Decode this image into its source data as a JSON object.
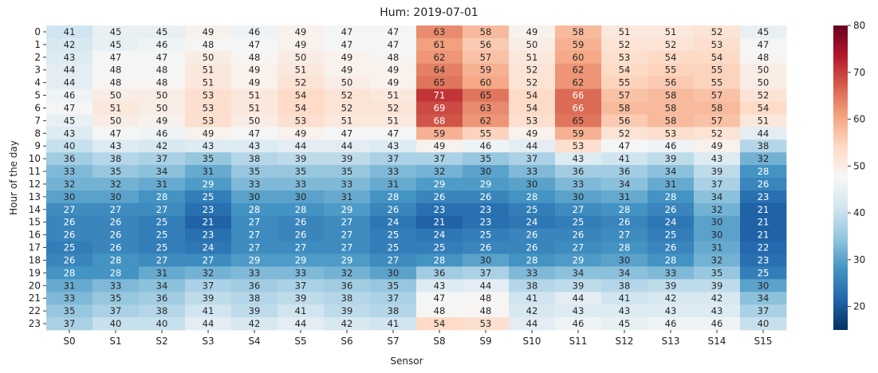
{
  "chart_data": {
    "type": "heatmap",
    "title": "Hum: 2019-07-01",
    "xlabel": "Sensor",
    "ylabel": "Hour of the day",
    "x": [
      "S0",
      "S1",
      "S2",
      "S3",
      "S4",
      "S5",
      "S6",
      "S7",
      "S8",
      "S9",
      "S10",
      "S11",
      "S12",
      "S13",
      "S14",
      "S15"
    ],
    "y": [
      "0",
      "1",
      "2",
      "3",
      "4",
      "5",
      "6",
      "7",
      "8",
      "9",
      "10",
      "11",
      "12",
      "13",
      "14",
      "15",
      "16",
      "17",
      "18",
      "19",
      "20",
      "21",
      "22",
      "23"
    ],
    "values": [
      [
        41,
        45,
        45,
        49,
        46,
        49,
        47,
        47,
        63,
        58,
        49,
        58,
        51,
        51,
        52,
        45
      ],
      [
        42,
        45,
        46,
        48,
        47,
        49,
        47,
        47,
        61,
        56,
        50,
        59,
        52,
        52,
        53,
        47
      ],
      [
        43,
        47,
        47,
        50,
        48,
        50,
        49,
        48,
        62,
        57,
        51,
        60,
        53,
        54,
        54,
        48
      ],
      [
        44,
        48,
        48,
        51,
        49,
        51,
        49,
        49,
        64,
        59,
        52,
        62,
        54,
        55,
        55,
        50
      ],
      [
        44,
        48,
        48,
        51,
        49,
        52,
        50,
        49,
        65,
        60,
        52,
        62,
        55,
        56,
        55,
        50
      ],
      [
        46,
        50,
        50,
        53,
        51,
        54,
        52,
        51,
        71,
        65,
        54,
        66,
        57,
        58,
        57,
        52
      ],
      [
        47,
        51,
        50,
        53,
        51,
        54,
        52,
        52,
        69,
        63,
        54,
        66,
        58,
        58,
        58,
        54
      ],
      [
        45,
        50,
        49,
        53,
        50,
        53,
        51,
        51,
        68,
        62,
        53,
        65,
        56,
        58,
        57,
        51
      ],
      [
        43,
        47,
        46,
        49,
        47,
        49,
        47,
        47,
        59,
        55,
        49,
        59,
        52,
        53,
        52,
        44
      ],
      [
        40,
        43,
        42,
        43,
        43,
        44,
        44,
        43,
        49,
        46,
        44,
        53,
        47,
        46,
        49,
        38
      ],
      [
        36,
        38,
        37,
        35,
        38,
        39,
        39,
        37,
        37,
        35,
        37,
        43,
        41,
        39,
        43,
        32
      ],
      [
        33,
        35,
        34,
        31,
        35,
        35,
        35,
        33,
        32,
        30,
        33,
        36,
        36,
        34,
        39,
        28
      ],
      [
        32,
        32,
        31,
        29,
        33,
        33,
        33,
        31,
        29,
        29,
        30,
        33,
        34,
        31,
        37,
        26
      ],
      [
        30,
        30,
        28,
        25,
        30,
        30,
        31,
        28,
        26,
        26,
        28,
        30,
        31,
        28,
        34,
        23
      ],
      [
        27,
        27,
        27,
        23,
        28,
        28,
        29,
        26,
        23,
        23,
        25,
        27,
        28,
        26,
        32,
        21
      ],
      [
        26,
        26,
        25,
        21,
        27,
        26,
        27,
        24,
        21,
        23,
        24,
        25,
        26,
        24,
        30,
        21
      ],
      [
        26,
        26,
        25,
        23,
        27,
        26,
        27,
        25,
        24,
        25,
        26,
        26,
        27,
        25,
        30,
        21
      ],
      [
        25,
        26,
        25,
        24,
        27,
        27,
        27,
        25,
        25,
        26,
        26,
        27,
        28,
        26,
        31,
        22
      ],
      [
        26,
        28,
        27,
        27,
        29,
        29,
        29,
        27,
        28,
        30,
        28,
        29,
        30,
        28,
        32,
        23
      ],
      [
        28,
        28,
        31,
        32,
        33,
        33,
        32,
        30,
        36,
        37,
        33,
        34,
        34,
        33,
        35,
        25
      ],
      [
        31,
        33,
        34,
        37,
        36,
        37,
        36,
        35,
        43,
        44,
        38,
        39,
        38,
        39,
        39,
        30
      ],
      [
        33,
        35,
        36,
        39,
        38,
        39,
        38,
        37,
        47,
        48,
        41,
        44,
        41,
        42,
        42,
        34
      ],
      [
        35,
        37,
        38,
        41,
        39,
        41,
        39,
        38,
        48,
        48,
        42,
        43,
        43,
        43,
        43,
        37
      ],
      [
        37,
        40,
        40,
        44,
        42,
        44,
        42,
        41,
        54,
        53,
        44,
        46,
        45,
        46,
        46,
        40
      ]
    ],
    "vmin": 15,
    "vmax": 80,
    "colormap": "RdBu_r",
    "colorbar_ticks": [
      20,
      30,
      40,
      50,
      60,
      70,
      80
    ],
    "annotated": true,
    "grid": false
  }
}
